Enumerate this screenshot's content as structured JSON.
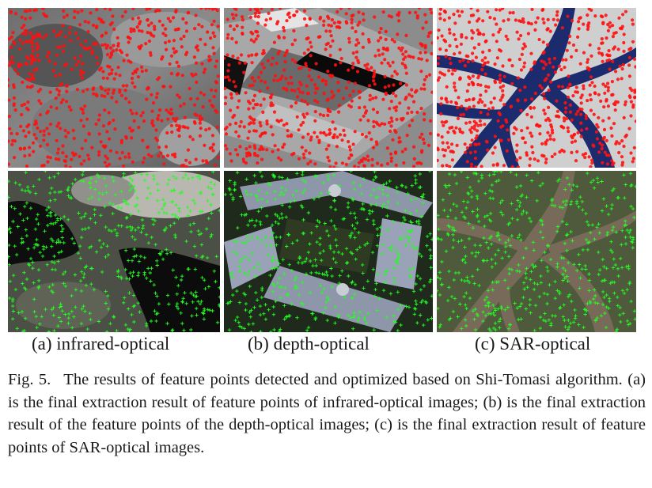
{
  "figure": {
    "panels": [
      {
        "id": "a",
        "subcaption": "(a) infrared-optical",
        "top_markers": "red-circle-points",
        "bottom_markers": "green-cross-points"
      },
      {
        "id": "b",
        "subcaption": "(b) depth-optical",
        "top_markers": "red-circle-points",
        "bottom_markers": "green-cross-points"
      },
      {
        "id": "c",
        "subcaption": "(c) SAR-optical",
        "top_markers": "red-circle-points",
        "bottom_markers": "green-cross-points"
      }
    ],
    "colors": {
      "top_marker": "#ff1010",
      "bottom_marker": "#22ff22",
      "sar_river": "#1c2a6e",
      "depth_top": "#9a9a9a"
    }
  },
  "caption": {
    "label": "Fig. 5.",
    "text": "The results of feature points detected and optimized based on Shi-Tomasi algorithm. (a) is the final extraction result of feature points of infrared-optical images; (b) is the final extraction result of the feature points of the depth-optical images; (c) is the final extraction result of feature points of SAR-optical images."
  }
}
